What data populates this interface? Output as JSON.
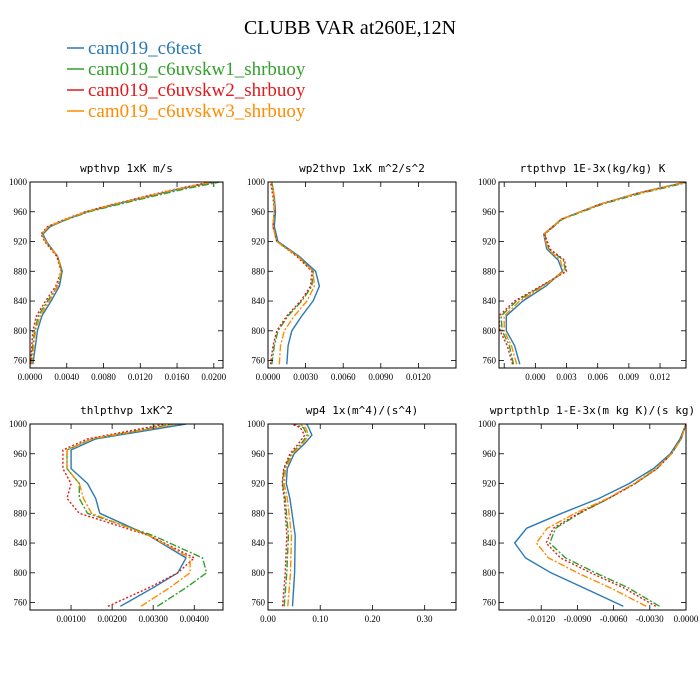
{
  "figure": {
    "title": "CLUBB VAR at260E,12N"
  },
  "legend": [
    {
      "label": "cam019_c6test",
      "color": "#2a7ab6",
      "dash": "solid"
    },
    {
      "label": "cam019_c6uvskw1_shrbuoy",
      "color": "#33a02c",
      "dash": "dashdot"
    },
    {
      "label": "cam019_c6uvskw2_shrbuoy",
      "color": "#e31a1c",
      "dash": "dot"
    },
    {
      "label": "cam019_c6uvskw3_shrbuoy",
      "color": "#ff8c00",
      "dash": "dashdot"
    }
  ],
  "chart_data": [
    {
      "type": "line",
      "title": "wpthvp   1xK m/s",
      "xlim": [
        0,
        0.021
      ],
      "ylim": [
        1000,
        750
      ],
      "xticks": [
        0.0,
        0.004,
        0.008,
        0.012,
        0.016,
        0.02
      ],
      "xtick_labels": [
        "0.0000",
        "0.0040",
        "0.0080",
        "0.0120",
        "0.0160",
        "0.0200"
      ],
      "yticks": [
        760,
        800,
        840,
        880,
        920,
        960,
        1000
      ],
      "y": [
        755,
        780,
        800,
        820,
        840,
        860,
        880,
        900,
        920,
        930,
        940,
        950,
        960,
        970,
        980,
        990,
        1000
      ],
      "series": [
        {
          "name": "cam019_c6test",
          "values": [
            0.0003,
            0.0006,
            0.0008,
            0.0013,
            0.0023,
            0.0032,
            0.0035,
            0.003,
            0.0018,
            0.0014,
            0.0022,
            0.004,
            0.0062,
            0.0093,
            0.0126,
            0.016,
            0.02
          ]
        },
        {
          "name": "cam019_c6uvskw1_shrbuoy",
          "values": [
            0.0001,
            0.0003,
            0.0005,
            0.0009,
            0.0019,
            0.003,
            0.0035,
            0.003,
            0.0017,
            0.0013,
            0.0021,
            0.0041,
            0.0064,
            0.0097,
            0.0131,
            0.0166,
            0.0207
          ]
        },
        {
          "name": "cam019_c6uvskw2_shrbuoy",
          "values": [
            0.0001,
            0.0002,
            0.0003,
            0.0007,
            0.0017,
            0.0028,
            0.0034,
            0.0029,
            0.0016,
            0.0012,
            0.0019,
            0.0038,
            0.006,
            0.009,
            0.0123,
            0.0157,
            0.0196
          ]
        },
        {
          "name": "cam019_c6uvskw3_shrbuoy",
          "values": [
            0.0002,
            0.0004,
            0.0006,
            0.0011,
            0.0021,
            0.003,
            0.0034,
            0.003,
            0.0017,
            0.0013,
            0.002,
            0.0039,
            0.0061,
            0.0091,
            0.0125,
            0.0158,
            0.0198
          ]
        }
      ]
    },
    {
      "type": "line",
      "title": "wp2thvp   1xK m^2/s^2",
      "xlim": [
        0,
        0.015
      ],
      "ylim": [
        1000,
        750
      ],
      "xticks": [
        0.0,
        0.003,
        0.006,
        0.009,
        0.012
      ],
      "xtick_labels": [
        "0.0000",
        "0.0030",
        "0.0060",
        "0.0090",
        "0.0120"
      ],
      "yticks": [
        760,
        800,
        840,
        880,
        920,
        960,
        1000
      ],
      "y": [
        755,
        780,
        800,
        820,
        840,
        860,
        880,
        900,
        920,
        940,
        960,
        980,
        1000
      ],
      "series": [
        {
          "name": "cam019_c6test",
          "values": [
            0.0015,
            0.0016,
            0.0019,
            0.0027,
            0.0036,
            0.0041,
            0.0038,
            0.0025,
            0.0008,
            0.0005,
            0.0006,
            0.0005,
            0.0003
          ]
        },
        {
          "name": "cam019_c6uvskw1_shrbuoy",
          "values": [
            0.0003,
            0.0005,
            0.0008,
            0.0016,
            0.0027,
            0.0035,
            0.0036,
            0.0024,
            0.0007,
            0.0004,
            0.0005,
            0.0005,
            0.0003
          ]
        },
        {
          "name": "cam019_c6uvskw2_shrbuoy",
          "values": [
            0.0002,
            0.0004,
            0.0007,
            0.0015,
            0.0026,
            0.0034,
            0.0035,
            0.0023,
            0.0007,
            0.0004,
            0.0005,
            0.0004,
            0.0002
          ]
        },
        {
          "name": "cam019_c6uvskw3_shrbuoy",
          "values": [
            0.0009,
            0.001,
            0.0013,
            0.0021,
            0.0031,
            0.0037,
            0.0036,
            0.0024,
            0.0007,
            0.0004,
            0.0005,
            0.0005,
            0.0003
          ]
        }
      ]
    },
    {
      "type": "line",
      "title": "rtpthvp   1E-3x(kg/kg) K",
      "xlim": [
        -0.0035,
        0.0145
      ],
      "ylim": [
        1000,
        750
      ],
      "xticks": [
        -0.003,
        0.0,
        0.003,
        0.006,
        0.009,
        0.012
      ],
      "xtick_labels": [
        "",
        "0.000",
        "0.003",
        "0.006",
        "0.009",
        "0.012"
      ],
      "yticks": [
        760,
        800,
        840,
        880,
        920,
        960,
        1000
      ],
      "y": [
        755,
        780,
        800,
        820,
        840,
        860,
        880,
        895,
        910,
        930,
        950,
        970,
        985,
        1000
      ],
      "series": [
        {
          "name": "cam019_c6test",
          "values": [
            -0.0015,
            -0.002,
            -0.0028,
            -0.0028,
            -0.0012,
            0.001,
            0.0026,
            0.0022,
            0.0011,
            0.0008,
            0.0025,
            0.0062,
            0.0098,
            0.0145
          ]
        },
        {
          "name": "cam019_c6uvskw1_shrbuoy",
          "values": [
            -0.0021,
            -0.0025,
            -0.0032,
            -0.0033,
            -0.0018,
            0.0006,
            0.0029,
            0.0027,
            0.0013,
            0.0009,
            0.0026,
            0.0064,
            0.0102,
            0.0148
          ]
        },
        {
          "name": "cam019_c6uvskw2_shrbuoy",
          "values": [
            -0.0022,
            -0.0027,
            -0.0034,
            -0.0035,
            -0.002,
            0.0005,
            0.003,
            0.0028,
            0.0014,
            0.0009,
            0.0025,
            0.0062,
            0.0099,
            0.0145
          ]
        },
        {
          "name": "cam019_c6uvskw3_shrbuoy",
          "values": [
            -0.0018,
            -0.0023,
            -0.003,
            -0.003,
            -0.0015,
            0.0008,
            0.0027,
            0.0024,
            0.0012,
            0.0008,
            0.0025,
            0.0062,
            0.0099,
            0.0145
          ]
        }
      ]
    },
    {
      "type": "line",
      "title": "thlpthvp   1xK^2",
      "xlim": [
        0.0,
        0.0047
      ],
      "ylim": [
        1000,
        750
      ],
      "xticks": [
        0.001,
        0.002,
        0.003,
        0.004
      ],
      "xtick_labels": [
        "0.00100",
        "0.00200",
        "0.00300",
        "0.00400"
      ],
      "yticks": [
        760,
        800,
        840,
        880,
        920,
        960,
        1000
      ],
      "y": [
        755,
        780,
        800,
        820,
        850,
        880,
        900,
        920,
        940,
        965,
        980,
        1000
      ],
      "series": [
        {
          "name": "cam019_c6test",
          "values": [
            0.0022,
            0.003,
            0.0036,
            0.0038,
            0.0029,
            0.0017,
            0.0016,
            0.0014,
            0.001,
            0.001,
            0.0016,
            0.0038
          ]
        },
        {
          "name": "cam019_c6uvskw1_shrbuoy",
          "values": [
            0.0031,
            0.0038,
            0.0043,
            0.0042,
            0.003,
            0.0014,
            0.0012,
            0.0012,
            0.0009,
            0.0009,
            0.0015,
            0.0035
          ]
        },
        {
          "name": "cam019_c6uvskw2_shrbuoy",
          "values": [
            0.0019,
            0.0029,
            0.0036,
            0.004,
            0.0029,
            0.0012,
            0.0009,
            0.001,
            0.0008,
            0.0008,
            0.0014,
            0.0033
          ]
        },
        {
          "name": "cam019_c6uvskw3_shrbuoy",
          "values": [
            0.0027,
            0.0034,
            0.0039,
            0.0039,
            0.0029,
            0.0015,
            0.0013,
            0.0012,
            0.0009,
            0.0009,
            0.0015,
            0.0036
          ]
        }
      ]
    },
    {
      "type": "line",
      "title": "wp4   1x(m^4)/(s^4)",
      "xlim": [
        0,
        0.36
      ],
      "ylim": [
        1000,
        750
      ],
      "xticks": [
        0.0,
        0.1,
        0.2,
        0.3
      ],
      "xtick_labels": [
        "0.00",
        "0.10",
        "0.20",
        "0.30"
      ],
      "yticks": [
        760,
        800,
        840,
        880,
        920,
        960,
        1000
      ],
      "y": [
        755,
        800,
        850,
        900,
        920,
        940,
        960,
        975,
        985,
        995,
        1000
      ],
      "series": [
        {
          "name": "cam019_c6test",
          "values": [
            0.047,
            0.051,
            0.052,
            0.042,
            0.035,
            0.037,
            0.05,
            0.072,
            0.084,
            0.078,
            0.074
          ]
        },
        {
          "name": "cam019_c6uvskw1_shrbuoy",
          "values": [
            0.031,
            0.036,
            0.039,
            0.033,
            0.028,
            0.031,
            0.045,
            0.065,
            0.075,
            0.068,
            0.05
          ]
        },
        {
          "name": "cam019_c6uvskw2_shrbuoy",
          "values": [
            0.028,
            0.033,
            0.036,
            0.031,
            0.027,
            0.03,
            0.042,
            0.06,
            0.07,
            0.062,
            0.045
          ]
        },
        {
          "name": "cam019_c6uvskw3_shrbuoy",
          "values": [
            0.038,
            0.043,
            0.045,
            0.037,
            0.031,
            0.034,
            0.047,
            0.068,
            0.078,
            0.072,
            0.06
          ]
        }
      ]
    },
    {
      "type": "line",
      "title": "wprtpthlp   1-E-3x(m kg K)/(s kg)",
      "xlim": [
        -0.0155,
        0.0
      ],
      "ylim": [
        1000,
        750
      ],
      "xticks": [
        -0.012,
        -0.009,
        -0.006,
        -0.003,
        0.0
      ],
      "xtick_labels": [
        "-0.0120",
        "-0.0090",
        "-0.0060",
        "-0.0030",
        "0.0000"
      ],
      "yticks": [
        760,
        800,
        840,
        880,
        920,
        960,
        1000
      ],
      "y": [
        755,
        780,
        800,
        820,
        840,
        860,
        880,
        900,
        920,
        940,
        960,
        980,
        1000
      ],
      "series": [
        {
          "name": "cam019_c6test",
          "values": [
            -0.0052,
            -0.0085,
            -0.0112,
            -0.0133,
            -0.0142,
            -0.0132,
            -0.0103,
            -0.0072,
            -0.0047,
            -0.0027,
            -0.0013,
            -0.0005,
            0.0
          ]
        },
        {
          "name": "cam019_c6uvskw1_shrbuoy",
          "values": [
            -0.0022,
            -0.0048,
            -0.0075,
            -0.01,
            -0.0113,
            -0.0108,
            -0.0088,
            -0.0064,
            -0.0042,
            -0.0024,
            -0.0012,
            -0.0004,
            0.0
          ]
        },
        {
          "name": "cam019_c6uvskw2_shrbuoy",
          "values": [
            -0.0025,
            -0.0052,
            -0.0079,
            -0.0104,
            -0.0116,
            -0.011,
            -0.0089,
            -0.0064,
            -0.0042,
            -0.0024,
            -0.0012,
            -0.0004,
            0.0
          ]
        },
        {
          "name": "cam019_c6uvskw3_shrbuoy",
          "values": [
            -0.0033,
            -0.0063,
            -0.009,
            -0.0114,
            -0.0124,
            -0.0115,
            -0.0092,
            -0.0065,
            -0.0043,
            -0.0025,
            -0.0012,
            -0.0004,
            0.0
          ]
        }
      ]
    }
  ]
}
